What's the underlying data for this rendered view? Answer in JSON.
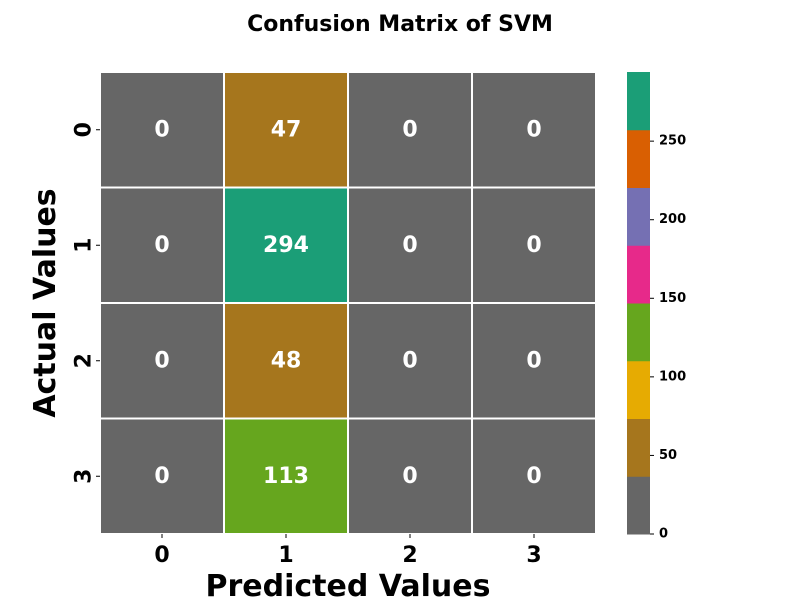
{
  "chart_data": {
    "type": "heatmap",
    "title": "Confusion Matrix of SVM",
    "xlabel": "Predicted Values",
    "ylabel": "Actual Values",
    "x_categories": [
      "0",
      "1",
      "2",
      "3"
    ],
    "y_categories": [
      "0",
      "1",
      "2",
      "3"
    ],
    "values": [
      [
        0,
        47,
        0,
        0
      ],
      [
        0,
        294,
        0,
        0
      ],
      [
        0,
        48,
        0,
        0
      ],
      [
        0,
        113,
        0,
        0
      ]
    ],
    "colorbar": {
      "range": [
        0,
        294
      ],
      "ticks": [
        0,
        50,
        100,
        150,
        200,
        250
      ],
      "colors": [
        "#666666",
        "#a6761d",
        "#e6ab02",
        "#66a61e",
        "#e7298a",
        "#7570b3",
        "#d95f02",
        "#1b9e77"
      ]
    }
  }
}
